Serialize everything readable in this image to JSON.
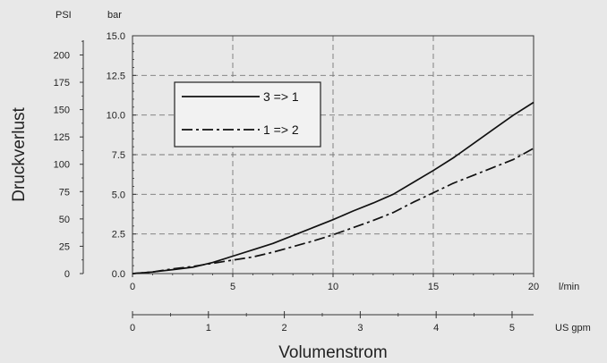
{
  "chart_data": {
    "type": "line",
    "ylabel": "Druckverlust",
    "xlabel": "Volumenstrom",
    "x_unit": "l/min",
    "x_secondary_unit": "US gpm",
    "y_unit": "bar",
    "y_secondary_unit": "PSI",
    "xlim": [
      0,
      20
    ],
    "ylim": [
      0,
      15
    ],
    "x_ticks": [
      "0",
      "5",
      "10",
      "15",
      "20"
    ],
    "y_ticks": [
      "0.0",
      "2.5",
      "5.0",
      "7.5",
      "10.0",
      "12.5",
      "15.0"
    ],
    "psi_ticks": [
      "0",
      "25",
      "50",
      "75",
      "100",
      "125",
      "150",
      "175",
      "200"
    ],
    "gpm_ticks": [
      "0",
      "1",
      "2",
      "3",
      "4",
      "5"
    ],
    "grid": true,
    "legend_position": "top-left",
    "series": [
      {
        "name": "3 => 1",
        "style": "solid",
        "x": [
          0,
          1,
          2,
          3,
          4,
          5,
          6,
          7,
          8,
          9,
          10,
          11,
          12,
          13,
          14,
          15,
          16,
          17,
          18,
          19,
          20
        ],
        "y": [
          0,
          0.1,
          0.25,
          0.4,
          0.7,
          1.1,
          1.5,
          1.9,
          2.4,
          2.9,
          3.4,
          3.95,
          4.45,
          5.0,
          5.75,
          6.5,
          7.3,
          8.2,
          9.1,
          10.0,
          10.8
        ]
      },
      {
        "name": "1 => 2",
        "style": "dash-dot",
        "x": [
          0,
          1,
          2,
          3,
          4,
          5,
          6,
          7,
          8,
          9,
          10,
          11,
          12,
          13,
          14,
          15,
          16,
          17,
          18,
          19,
          20
        ],
        "y": [
          0,
          0.1,
          0.3,
          0.45,
          0.65,
          0.85,
          1.05,
          1.35,
          1.7,
          2.05,
          2.45,
          2.9,
          3.35,
          3.85,
          4.5,
          5.1,
          5.7,
          6.2,
          6.7,
          7.2,
          7.9
        ]
      }
    ]
  }
}
